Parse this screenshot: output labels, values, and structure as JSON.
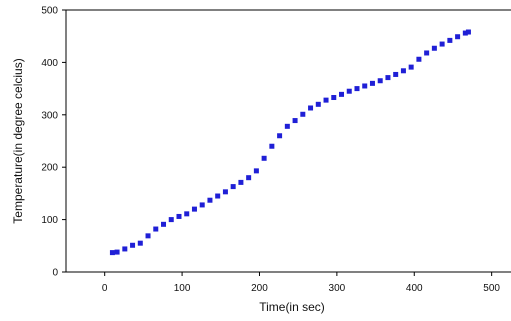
{
  "chart_data": {
    "type": "scatter",
    "title": "",
    "xlabel": "Time(in sec)",
    "ylabel": "Temperature(in degree celcius)",
    "xlim": [
      -50,
      525
    ],
    "ylim": [
      0,
      500
    ],
    "x_ticks": [
      "0",
      "100",
      "200",
      "300",
      "400",
      "500"
    ],
    "y_ticks": [
      "0",
      "100",
      "200",
      "300",
      "400",
      "500"
    ],
    "grid": false,
    "legend": "none",
    "marker": "square",
    "marker_color": "#1f1fd6",
    "series": [
      {
        "points": [
          [
            10,
            37
          ],
          [
            16,
            38
          ],
          [
            26,
            44
          ],
          [
            36,
            51
          ],
          [
            46,
            55
          ],
          [
            56,
            69
          ],
          [
            66,
            82
          ],
          [
            76,
            91
          ],
          [
            86,
            100
          ],
          [
            96,
            106
          ],
          [
            106,
            111
          ],
          [
            116,
            120
          ],
          [
            126,
            128
          ],
          [
            136,
            137
          ],
          [
            146,
            145
          ],
          [
            156,
            153
          ],
          [
            166,
            163
          ],
          [
            176,
            171
          ],
          [
            186,
            180
          ],
          [
            196,
            193
          ],
          [
            206,
            217
          ],
          [
            216,
            240
          ],
          [
            226,
            260
          ],
          [
            236,
            278
          ],
          [
            246,
            289
          ],
          [
            256,
            301
          ],
          [
            266,
            313
          ],
          [
            276,
            320
          ],
          [
            286,
            328
          ],
          [
            296,
            333
          ],
          [
            306,
            339
          ],
          [
            316,
            345
          ],
          [
            326,
            350
          ],
          [
            336,
            355
          ],
          [
            346,
            360
          ],
          [
            356,
            365
          ],
          [
            366,
            371
          ],
          [
            376,
            377
          ],
          [
            386,
            384
          ],
          [
            396,
            391
          ],
          [
            406,
            406
          ],
          [
            416,
            418
          ],
          [
            426,
            427
          ],
          [
            436,
            435
          ],
          [
            446,
            442
          ],
          [
            456,
            449
          ],
          [
            466,
            456
          ],
          [
            470,
            458
          ]
        ]
      }
    ]
  }
}
